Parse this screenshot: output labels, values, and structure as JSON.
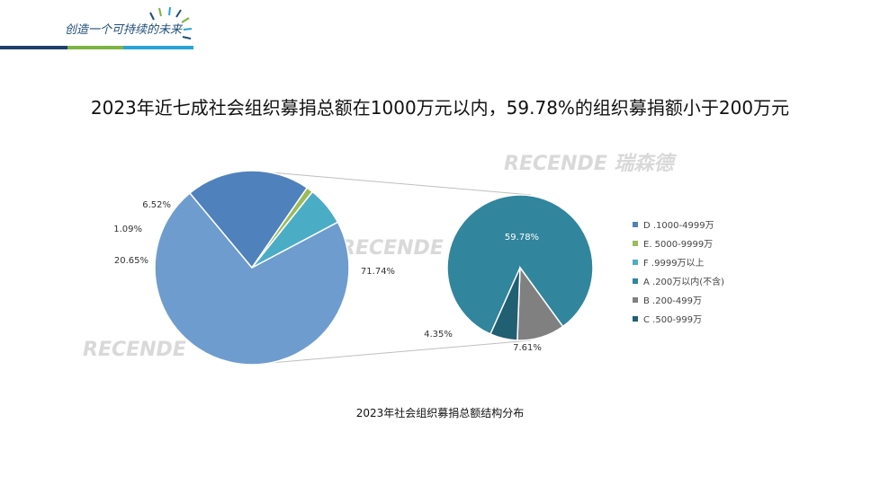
{
  "header": {
    "slogan": "创造一个可持续的未来"
  },
  "title": "2023年近七成社会组织募捐总额在1000万元以内，59.78%的组织募捐额小于200万元",
  "caption": "2023年社会组织募捐总额结构分布",
  "watermarks": [
    "RECENDE 瑞森德",
    "RECENDE 瑞",
    "RECENDE"
  ],
  "chart_data": {
    "type": "pie",
    "title": "2023年社会组织募捐总额结构分布",
    "main_pie": {
      "slices": [
        {
          "key": "under1000",
          "value": 71.74,
          "label": "71.74%",
          "color": "#6f9ccf"
        },
        {
          "key": "D",
          "value": 20.65,
          "label": "20.65%",
          "color": "#4f81bd"
        },
        {
          "key": "E",
          "value": 1.09,
          "label": "1.09%",
          "color": "#9bbb59"
        },
        {
          "key": "F",
          "value": 6.52,
          "label": "6.52%",
          "color": "#4bacc6"
        }
      ]
    },
    "sub_pie": {
      "slices": [
        {
          "key": "A",
          "value": 59.78,
          "label": "59.78%",
          "color": "#31859c"
        },
        {
          "key": "B",
          "value": 7.61,
          "label": "7.61%",
          "color": "#808080"
        },
        {
          "key": "C",
          "value": 4.35,
          "label": "4.35%",
          "color": "#215f73"
        }
      ]
    },
    "legend": [
      {
        "label": "D .1000-4999万",
        "color": "#4f81bd"
      },
      {
        "label": "E. 5000-9999万",
        "color": "#9bbb59"
      },
      {
        "label": "F .9999万以上",
        "color": "#4bacc6"
      },
      {
        "label": "A .200万以内(不含)",
        "color": "#31859c"
      },
      {
        "label": "B .200-499万",
        "color": "#808080"
      },
      {
        "label": "C .500-999万",
        "color": "#215f73"
      }
    ]
  }
}
